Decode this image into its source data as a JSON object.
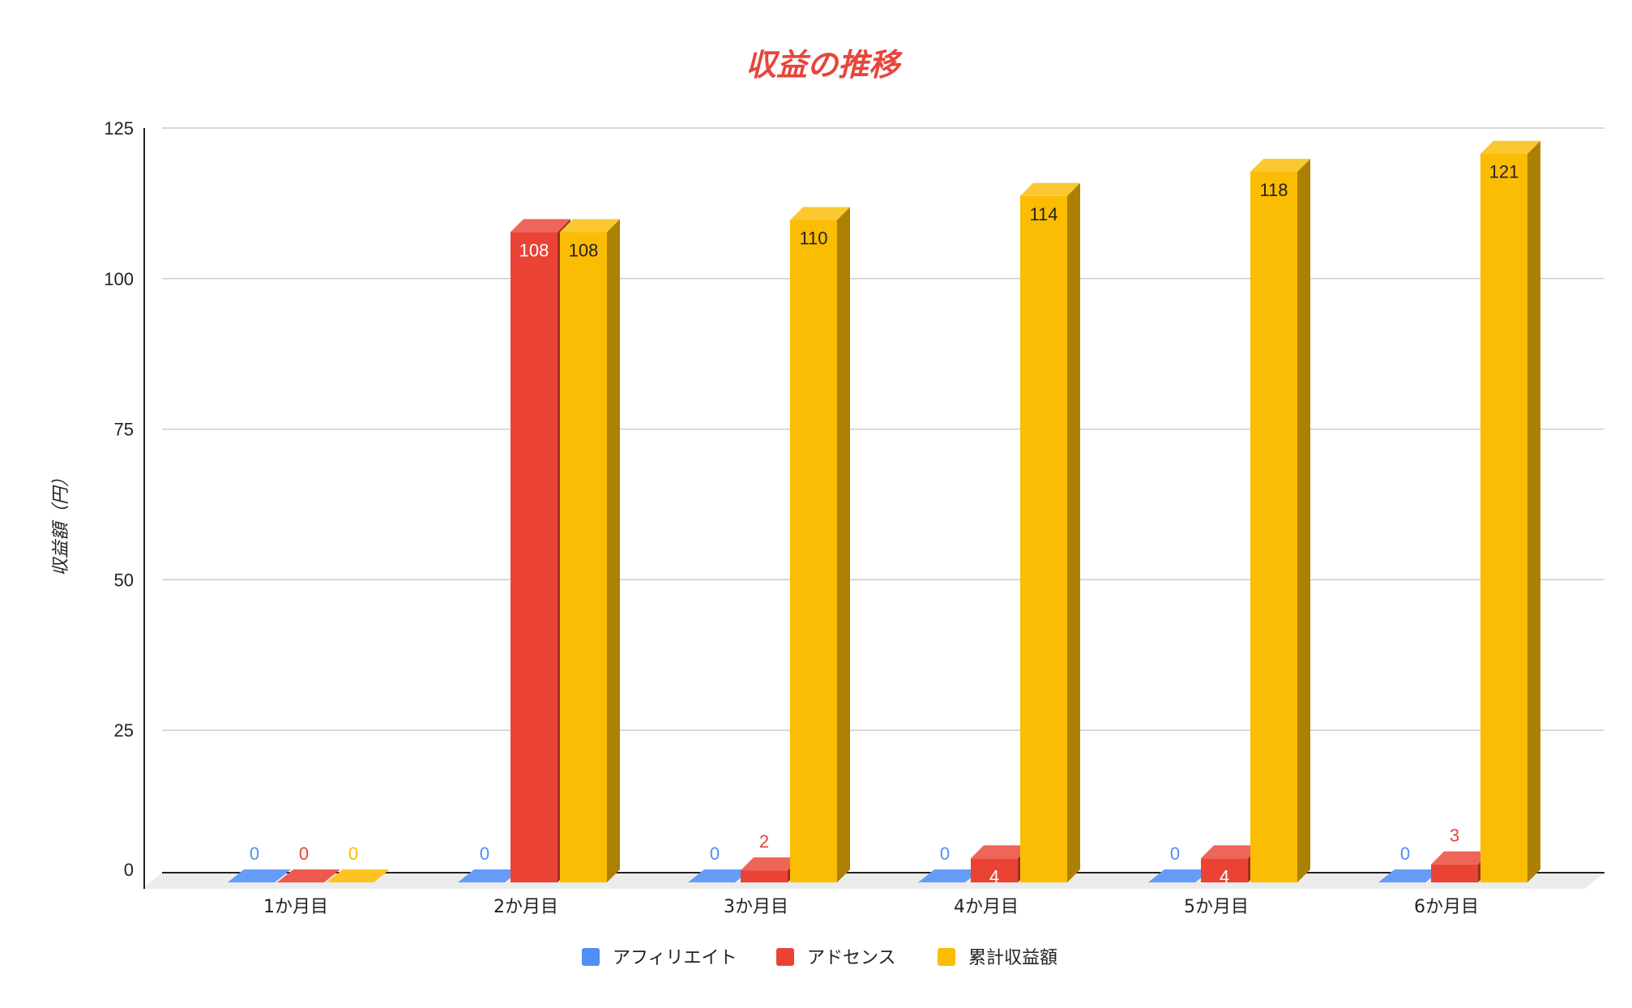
{
  "chart_data": {
    "type": "bar",
    "title": "収益の推移",
    "ylabel": "収益額（円）",
    "xlabel": "",
    "ylim": [
      0,
      125
    ],
    "yticks": [
      0,
      25,
      50,
      75,
      100,
      125
    ],
    "grid": true,
    "legend_position": "bottom",
    "style": "3d",
    "title_color": "#e8453c",
    "categories": [
      "1か月目",
      "2か月目",
      "3か月目",
      "4か月目",
      "5か月目",
      "6か月目"
    ],
    "series": [
      {
        "name": "アフィリエイト",
        "color": "#4f8ff7",
        "values": [
          0,
          0,
          0,
          0,
          0,
          0
        ],
        "labels": [
          "0",
          "0",
          "0",
          "0",
          "0",
          "0"
        ]
      },
      {
        "name": "アドセンス",
        "color": "#ea4335",
        "values": [
          0,
          108,
          2,
          4,
          4,
          3
        ],
        "labels": [
          "0",
          "108",
          "2",
          "4",
          "4",
          "3"
        ]
      },
      {
        "name": "累計収益額",
        "color": "#fbbc04",
        "values": [
          0,
          108,
          110,
          114,
          118,
          121
        ],
        "labels": [
          "0",
          "108",
          "110",
          "114",
          "118",
          "121"
        ]
      }
    ]
  }
}
